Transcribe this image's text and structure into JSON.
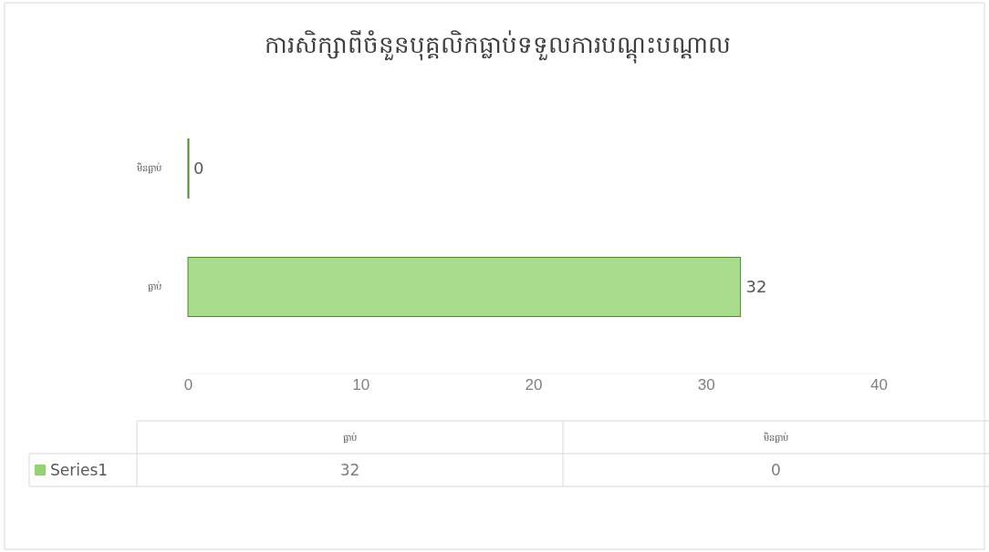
{
  "chart_data": {
    "type": "bar",
    "orientation": "horizontal",
    "title": "ការសិក្សាពីចំនួនបុគ្គលិកធ្លាប់ទទួលការបណ្តុះបណ្តាល",
    "categories": [
      "មិនធ្លាប់",
      "ធ្លាប់"
    ],
    "series": [
      {
        "name": "Series1",
        "color": "#92d36e",
        "values": [
          0,
          32
        ],
        "value_labels": [
          "0",
          "32"
        ]
      }
    ],
    "xlim": [
      0,
      40
    ],
    "xticks": [
      0,
      10,
      20,
      30,
      40
    ],
    "data_labels": true,
    "grid": false,
    "legend": "bottom left"
  }
}
